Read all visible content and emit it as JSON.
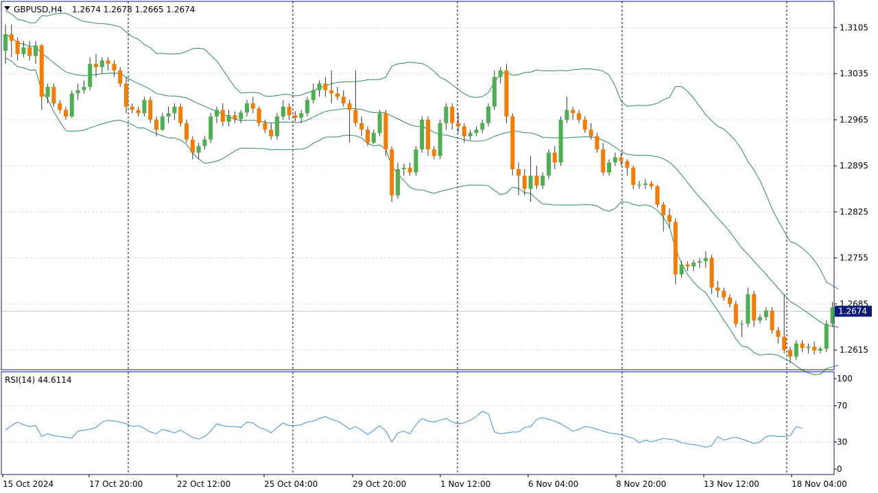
{
  "header": {
    "symbol": "GBPUSD,H4",
    "ohlc": "1.2674 1.2678 1.2665 1.2674"
  },
  "current_price_label": "1.2674",
  "rsi": {
    "label": "RSI(14) 44.6114",
    "period": 14,
    "value": 44.6114
  },
  "colors": {
    "bull": "#4caf50",
    "bear": "#f57c00",
    "wick": "#333333",
    "bands": "#2e8b57",
    "rsi_line": "#3d8fd6",
    "price_tag": "#0b1a78",
    "frame": "#0b1a78",
    "grid": "#d9d9d9"
  },
  "chart_data": [
    {
      "type": "candlestick",
      "title": "GBPUSD,H4",
      "ylim": [
        1.2585,
        1.3145
      ],
      "y_ticks": [
        "1.3105",
        "1.3035",
        "1.2965",
        "1.2895",
        "1.2825",
        "1.2755",
        "1.2685",
        "1.2615"
      ],
      "x_labels": [
        "15 Oct 2024",
        "17 Oct 20:00",
        "22 Oct 12:00",
        "25 Oct 04:00",
        "29 Oct 20:00",
        "1 Nov 12:00",
        "6 Nov 04:00",
        "8 Nov 20:00",
        "13 Nov 12:00",
        "18 Nov 04:00"
      ],
      "day_separators": [
        "17 Oct 20:00",
        "25 Oct 04:00",
        "1 Nov 12:00",
        "8 Nov 20:00",
        "18 Nov 04:00"
      ],
      "grid": true,
      "bollinger_period": 20,
      "candles": [
        [
          1.307,
          1.311,
          1.305,
          1.3095
        ],
        [
          1.3095,
          1.311,
          1.306,
          1.3085
        ],
        [
          1.3085,
          1.309,
          1.3055,
          1.3065
        ],
        [
          1.3065,
          1.3085,
          1.306,
          1.3075
        ],
        [
          1.3075,
          1.3085,
          1.3055,
          1.3062
        ],
        [
          1.3062,
          1.3085,
          1.305,
          1.3078
        ],
        [
          1.3078,
          1.308,
          1.298,
          1.3
        ],
        [
          1.3,
          1.302,
          1.299,
          1.3015
        ],
        [
          1.3015,
          1.302,
          1.2985,
          1.299
        ],
        [
          1.299,
          1.2995,
          1.2975,
          1.298
        ],
        [
          1.298,
          1.2985,
          1.2965,
          1.297
        ],
        [
          1.297,
          1.301,
          1.2968,
          1.3005
        ],
        [
          1.3005,
          1.302,
          1.2995,
          1.301
        ],
        [
          1.301,
          1.3025,
          1.3005,
          1.3015
        ],
        [
          1.3015,
          1.306,
          1.301,
          1.305
        ],
        [
          1.305,
          1.3065,
          1.303,
          1.3045
        ],
        [
          1.3045,
          1.306,
          1.3035,
          1.3055
        ],
        [
          1.3055,
          1.306,
          1.304,
          1.305
        ],
        [
          1.305,
          1.3055,
          1.303,
          1.304
        ],
        [
          1.304,
          1.3045,
          1.3015,
          1.302
        ],
        [
          1.302,
          1.303,
          1.2975,
          1.2985
        ],
        [
          1.2985,
          1.299,
          1.2975,
          1.298
        ],
        [
          1.298,
          1.2985,
          1.297,
          1.2975
        ],
        [
          1.2975,
          1.3,
          1.297,
          1.2995
        ],
        [
          1.2995,
          1.3,
          1.296,
          1.2965
        ],
        [
          1.2965,
          1.297,
          1.294,
          1.295
        ],
        [
          1.295,
          1.2975,
          1.2948,
          1.297
        ],
        [
          1.297,
          1.2985,
          1.296,
          1.2975
        ],
        [
          1.2975,
          1.299,
          1.2965,
          1.2985
        ],
        [
          1.2985,
          1.299,
          1.2955,
          1.296
        ],
        [
          1.296,
          1.2965,
          1.293,
          1.2935
        ],
        [
          1.2935,
          1.294,
          1.2905,
          1.2915
        ],
        [
          1.2915,
          1.293,
          1.2905,
          1.2925
        ],
        [
          1.2925,
          1.294,
          1.292,
          1.2935
        ],
        [
          1.2935,
          1.2975,
          1.293,
          1.297
        ],
        [
          1.297,
          1.2985,
          1.296,
          1.298
        ],
        [
          1.298,
          1.299,
          1.2955,
          1.2962
        ],
        [
          1.2962,
          1.298,
          1.2955,
          1.2972
        ],
        [
          1.2972,
          1.2978,
          1.296,
          1.2966
        ],
        [
          1.2966,
          1.298,
          1.296,
          1.2976
        ],
        [
          1.2976,
          1.2995,
          1.297,
          1.299
        ],
        [
          1.299,
          1.3,
          1.2975,
          1.2982
        ],
        [
          1.2982,
          1.2985,
          1.2955,
          1.296
        ],
        [
          1.296,
          1.2965,
          1.2945,
          1.295
        ],
        [
          1.295,
          1.296,
          1.2935,
          1.294
        ],
        [
          1.294,
          1.2975,
          1.2935,
          1.297
        ],
        [
          1.297,
          1.2995,
          1.2965,
          1.2985
        ],
        [
          1.2985,
          1.299,
          1.2965,
          1.2972
        ],
        [
          1.2972,
          1.2978,
          1.2962,
          1.2968
        ],
        [
          1.2968,
          1.298,
          1.296,
          1.2975
        ],
        [
          1.2975,
          1.3,
          1.297,
          1.2995
        ],
        [
          1.2995,
          1.302,
          1.299,
          1.301
        ],
        [
          1.301,
          1.3025,
          1.3,
          1.302
        ],
        [
          1.302,
          1.303,
          1.3,
          1.301
        ],
        [
          1.301,
          1.304,
          1.299,
          1.3005
        ],
        [
          1.3005,
          1.3015,
          1.2995,
          1.3
        ],
        [
          1.3,
          1.301,
          1.2985,
          1.299
        ],
        [
          1.299,
          1.2995,
          1.293,
          1.298
        ],
        [
          1.298,
          1.304,
          1.2955,
          1.296
        ],
        [
          1.296,
          1.297,
          1.294,
          1.295
        ],
        [
          1.295,
          1.2955,
          1.2925,
          1.293
        ],
        [
          1.293,
          1.295,
          1.2928,
          1.2945
        ],
        [
          1.2945,
          1.298,
          1.294,
          1.2975
        ],
        [
          1.2975,
          1.298,
          1.291,
          1.292
        ],
        [
          1.292,
          1.2925,
          1.284,
          1.285
        ],
        [
          1.285,
          1.29,
          1.2845,
          1.289
        ],
        [
          1.289,
          1.2898,
          1.288,
          1.2892
        ],
        [
          1.2892,
          1.29,
          1.288,
          1.2885
        ],
        [
          1.2885,
          1.2925,
          1.288,
          1.292
        ],
        [
          1.292,
          1.297,
          1.2915,
          1.2965
        ],
        [
          1.2965,
          1.297,
          1.291,
          1.292
        ],
        [
          1.292,
          1.2925,
          1.2905,
          1.291
        ],
        [
          1.291,
          1.2965,
          1.2905,
          1.296
        ],
        [
          1.296,
          1.299,
          1.295,
          1.2985
        ],
        [
          1.2985,
          1.299,
          1.295,
          1.296
        ],
        [
          1.296,
          1.2975,
          1.2945,
          1.2955
        ],
        [
          1.2955,
          1.296,
          1.293,
          1.294
        ],
        [
          1.294,
          1.295,
          1.2935,
          1.2945
        ],
        [
          1.2945,
          1.2955,
          1.294,
          1.295
        ],
        [
          1.295,
          1.2965,
          1.2945,
          1.296
        ],
        [
          1.296,
          1.299,
          1.2955,
          1.2985
        ],
        [
          1.2985,
          1.304,
          1.298,
          1.303
        ],
        [
          1.303,
          1.3045,
          1.302,
          1.304
        ],
        [
          1.304,
          1.305,
          1.296,
          1.297
        ],
        [
          1.297,
          1.2975,
          1.288,
          1.289
        ],
        [
          1.289,
          1.29,
          1.285,
          1.288
        ],
        [
          1.288,
          1.289,
          1.285,
          1.286
        ],
        [
          1.286,
          1.291,
          1.284,
          1.288
        ],
        [
          1.288,
          1.2895,
          1.286,
          1.2865
        ],
        [
          1.2865,
          1.2885,
          1.286,
          1.288
        ],
        [
          1.288,
          1.292,
          1.2875,
          1.2915
        ],
        [
          1.2915,
          1.2925,
          1.289,
          1.29
        ],
        [
          1.29,
          1.297,
          1.2895,
          1.2965
        ],
        [
          1.2965,
          1.3,
          1.296,
          1.298
        ],
        [
          1.298,
          1.2985,
          1.2965,
          1.2975
        ],
        [
          1.2975,
          1.298,
          1.296,
          1.2965
        ],
        [
          1.2965,
          1.297,
          1.2945,
          1.295
        ],
        [
          1.295,
          1.296,
          1.2935,
          1.294
        ],
        [
          1.294,
          1.2945,
          1.2915,
          1.292
        ],
        [
          1.292,
          1.293,
          1.288,
          1.2885
        ],
        [
          1.2885,
          1.2905,
          1.288,
          1.29
        ],
        [
          1.29,
          1.2915,
          1.2895,
          1.2908
        ],
        [
          1.2908,
          1.2915,
          1.2895,
          1.2902
        ],
        [
          1.2902,
          1.2905,
          1.288,
          1.2892
        ],
        [
          1.2892,
          1.2895,
          1.286,
          1.2866
        ],
        [
          1.2866,
          1.2872,
          1.286,
          1.2866
        ],
        [
          1.2866,
          1.2875,
          1.286,
          1.2868
        ],
        [
          1.2868,
          1.2872,
          1.286,
          1.2864
        ],
        [
          1.2864,
          1.2866,
          1.2832,
          1.2836
        ],
        [
          1.2836,
          1.284,
          1.2795,
          1.282
        ],
        [
          1.282,
          1.283,
          1.28,
          1.281
        ],
        [
          1.281,
          1.2815,
          1.2715,
          1.273
        ],
        [
          1.273,
          1.275,
          1.2725,
          1.2745
        ],
        [
          1.2745,
          1.275,
          1.2735,
          1.2742
        ],
        [
          1.2742,
          1.2752,
          1.2735,
          1.2748
        ],
        [
          1.2748,
          1.2755,
          1.274,
          1.275
        ],
        [
          1.275,
          1.2765,
          1.274,
          1.2755
        ],
        [
          1.2755,
          1.276,
          1.27,
          1.271
        ],
        [
          1.271,
          1.272,
          1.2695,
          1.2705
        ],
        [
          1.2705,
          1.271,
          1.269,
          1.2695
        ],
        [
          1.2695,
          1.27,
          1.268,
          1.2685
        ],
        [
          1.2685,
          1.269,
          1.265,
          1.2655
        ],
        [
          1.2655,
          1.266,
          1.2635,
          1.2655
        ],
        [
          1.2655,
          1.271,
          1.265,
          1.27
        ],
        [
          1.27,
          1.2705,
          1.265,
          1.266
        ],
        [
          1.266,
          1.267,
          1.2655,
          1.2665
        ],
        [
          1.2665,
          1.268,
          1.266,
          1.2675
        ],
        [
          1.2675,
          1.268,
          1.264,
          1.2645
        ],
        [
          1.2645,
          1.265,
          1.2625,
          1.2635
        ],
        [
          1.2635,
          1.27,
          1.261,
          1.2615
        ],
        [
          1.2615,
          1.262,
          1.2595,
          1.2605
        ],
        [
          1.2605,
          1.263,
          1.26,
          1.2625
        ],
        [
          1.2625,
          1.263,
          1.2612,
          1.2618
        ],
        [
          1.2618,
          1.2625,
          1.261,
          1.262
        ],
        [
          1.262,
          1.2628,
          1.2608,
          1.2614
        ],
        [
          1.2614,
          1.262,
          1.261,
          1.2617
        ],
        [
          1.2617,
          1.266,
          1.2612,
          1.2655
        ],
        [
          1.2655,
          1.2688,
          1.265,
          1.268
        ],
        [
          1.2674,
          1.2678,
          1.2665,
          1.2674
        ]
      ]
    },
    {
      "type": "line",
      "title": "RSI(14) 44.6114",
      "ylim": [
        0,
        100
      ],
      "y_ticks": [
        100,
        70,
        30,
        0
      ],
      "levels": [
        70,
        30
      ],
      "series": [
        {
          "values": [
            43,
            48,
            52,
            49,
            47,
            48,
            36,
            39,
            37,
            36,
            35,
            34,
            42,
            43,
            44,
            46,
            52,
            54,
            53,
            52,
            50,
            47,
            48,
            45,
            41,
            39,
            44,
            42,
            40,
            43,
            39,
            35,
            33,
            36,
            42,
            50,
            48,
            47,
            47,
            46,
            52,
            51,
            46,
            44,
            40,
            46,
            51,
            48,
            48,
            49,
            52,
            53,
            56,
            58,
            55,
            53,
            49,
            44,
            47,
            43,
            38,
            43,
            48,
            42,
            30,
            40,
            42,
            39,
            49,
            56,
            53,
            52,
            54,
            56,
            52,
            50,
            51,
            54,
            58,
            64,
            61,
            41,
            39,
            40,
            41,
            41,
            46,
            47,
            55,
            57,
            55,
            53,
            50,
            46,
            42,
            44,
            47,
            46,
            44,
            42,
            40,
            39,
            38,
            36,
            34,
            29,
            32,
            30,
            32,
            34,
            33,
            32,
            29,
            28,
            27,
            26,
            24,
            26,
            36,
            32,
            34,
            35,
            33,
            31,
            28,
            30,
            36,
            37,
            36,
            36,
            37,
            47,
            45
          ]
        }
      ]
    }
  ]
}
